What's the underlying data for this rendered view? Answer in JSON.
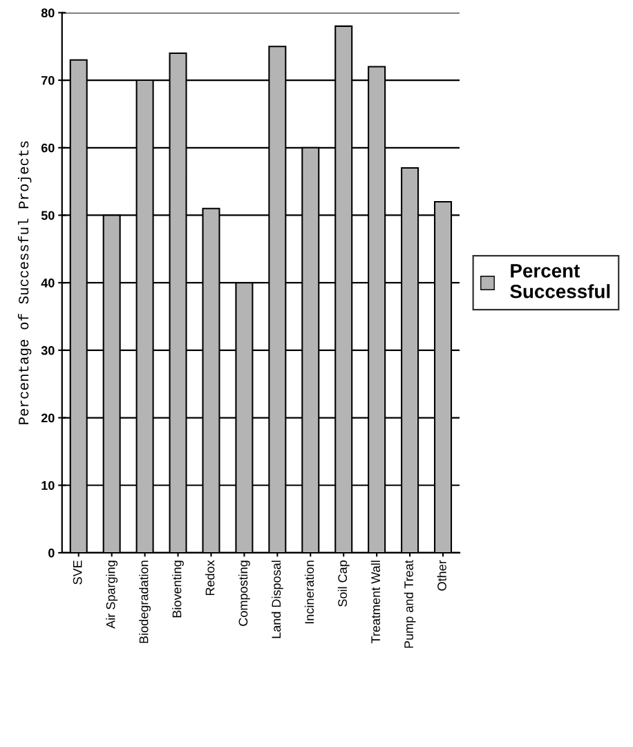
{
  "chart_data": {
    "type": "bar",
    "ylabel": "Percentage of Successful Projects",
    "categories": [
      "SVE",
      "Air Sparging",
      "Biodegradation",
      "Bioventing",
      "Redox",
      "Composting",
      "Land Disposal",
      "Incineration",
      "Soil Cap",
      "Treatment Wall",
      "Pump and Treat",
      "Other"
    ],
    "series": [
      {
        "name": "Percent Successful",
        "color": "#b4b4b4",
        "values": [
          73,
          50,
          70,
          74,
          51,
          40,
          75,
          60,
          78,
          72,
          57,
          52
        ]
      }
    ],
    "ylim": [
      0,
      80
    ],
    "yticks": [
      0,
      10,
      20,
      30,
      40,
      50,
      60,
      70,
      80
    ],
    "grid": "y",
    "legend": "right"
  }
}
